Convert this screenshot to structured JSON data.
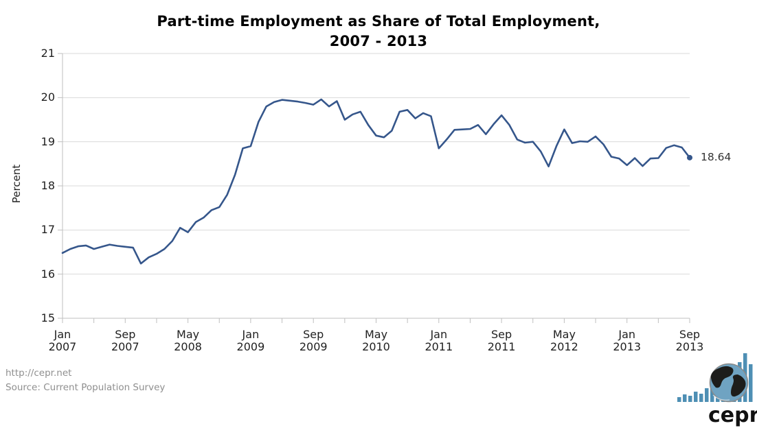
{
  "title": {
    "line1": "Part-time Employment as Share of Total Employment,",
    "line2": "2007 - 2013"
  },
  "chart_data": {
    "type": "line",
    "title": "Part-time Employment as Share of Total Employment, 2007 - 2013",
    "xlabel": "",
    "ylabel": "Percent",
    "ylim": [
      15,
      21
    ],
    "yticks": [
      15,
      16,
      17,
      18,
      19,
      20,
      21
    ],
    "grid": "horizontal-only",
    "legend": "none",
    "line_color": "#35568B",
    "gridline_color": "#d9d9d9",
    "axis_color": "#bfbfbf",
    "label_color": "#1f1f1f",
    "last_point_label": "18.64",
    "x_minor_tick_every": 4,
    "x_major_ticks": [
      {
        "index": 0,
        "month": "Jan",
        "year": "2007"
      },
      {
        "index": 8,
        "month": "Sep",
        "year": "2007"
      },
      {
        "index": 16,
        "month": "May",
        "year": "2008"
      },
      {
        "index": 24,
        "month": "Jan",
        "year": "2009"
      },
      {
        "index": 32,
        "month": "Sep",
        "year": "2009"
      },
      {
        "index": 40,
        "month": "May",
        "year": "2010"
      },
      {
        "index": 48,
        "month": "Jan",
        "year": "2011"
      },
      {
        "index": 56,
        "month": "Sep",
        "year": "2011"
      },
      {
        "index": 64,
        "month": "May",
        "year": "2012"
      },
      {
        "index": 72,
        "month": "Jan",
        "year": "2013"
      },
      {
        "index": 80,
        "month": "Sep",
        "year": "2013"
      }
    ],
    "x": [
      "Jan 2007",
      "Feb 2007",
      "Mar 2007",
      "Apr 2007",
      "May 2007",
      "Jun 2007",
      "Jul 2007",
      "Aug 2007",
      "Sep 2007",
      "Oct 2007",
      "Nov 2007",
      "Dec 2007",
      "Jan 2008",
      "Feb 2008",
      "Mar 2008",
      "Apr 2008",
      "May 2008",
      "Jun 2008",
      "Jul 2008",
      "Aug 2008",
      "Sep 2008",
      "Oct 2008",
      "Nov 2008",
      "Dec 2008",
      "Jan 2009",
      "Feb 2009",
      "Mar 2009",
      "Apr 2009",
      "May 2009",
      "Jun 2009",
      "Jul 2009",
      "Aug 2009",
      "Sep 2009",
      "Oct 2009",
      "Nov 2009",
      "Dec 2009",
      "Jan 2010",
      "Feb 2010",
      "Mar 2010",
      "Apr 2010",
      "May 2010",
      "Jun 2010",
      "Jul 2010",
      "Aug 2010",
      "Sep 2010",
      "Oct 2010",
      "Nov 2010",
      "Dec 2010",
      "Jan 2011",
      "Feb 2011",
      "Mar 2011",
      "Apr 2011",
      "May 2011",
      "Jun 2011",
      "Jul 2011",
      "Aug 2011",
      "Sep 2011",
      "Oct 2011",
      "Nov 2011",
      "Dec 2011",
      "Jan 2012",
      "Feb 2012",
      "Mar 2012",
      "Apr 2012",
      "May 2012",
      "Jun 2012",
      "Jul 2012",
      "Aug 2012",
      "Sep 2012",
      "Oct 2012",
      "Nov 2012",
      "Dec 2012",
      "Jan 2013",
      "Feb 2013",
      "Mar 2013",
      "Apr 2013",
      "May 2013",
      "Jun 2013",
      "Jul 2013",
      "Aug 2013",
      "Sep 2013"
    ],
    "values": [
      16.48,
      16.57,
      16.63,
      16.65,
      16.57,
      16.62,
      16.67,
      16.64,
      16.62,
      16.6,
      16.24,
      16.38,
      16.46,
      16.57,
      16.75,
      17.05,
      16.95,
      17.18,
      17.28,
      17.45,
      17.52,
      17.8,
      18.25,
      18.85,
      18.9,
      19.45,
      19.8,
      19.9,
      19.95,
      19.93,
      19.91,
      19.88,
      19.84,
      19.96,
      19.8,
      19.92,
      19.5,
      19.62,
      19.68,
      19.38,
      19.14,
      19.1,
      19.25,
      19.68,
      19.72,
      19.53,
      19.65,
      19.58,
      18.85,
      19.05,
      19.27,
      19.28,
      19.29,
      19.38,
      19.17,
      19.4,
      19.6,
      19.38,
      19.05,
      18.98,
      19.0,
      18.78,
      18.44,
      18.9,
      19.28,
      18.97,
      19.01,
      19.0,
      19.12,
      18.94,
      18.66,
      18.62,
      18.47,
      18.63,
      18.45,
      18.62,
      18.63,
      18.86,
      18.92,
      18.87,
      18.64
    ]
  },
  "footer": {
    "url": "http://cepr.net",
    "source": "Source: Current Population Survey"
  },
  "logo": {
    "text": "cepr",
    "bar_color": "#4E8FB4",
    "globe_water": "#6FA3C2",
    "globe_land": "#1d1d1b"
  }
}
